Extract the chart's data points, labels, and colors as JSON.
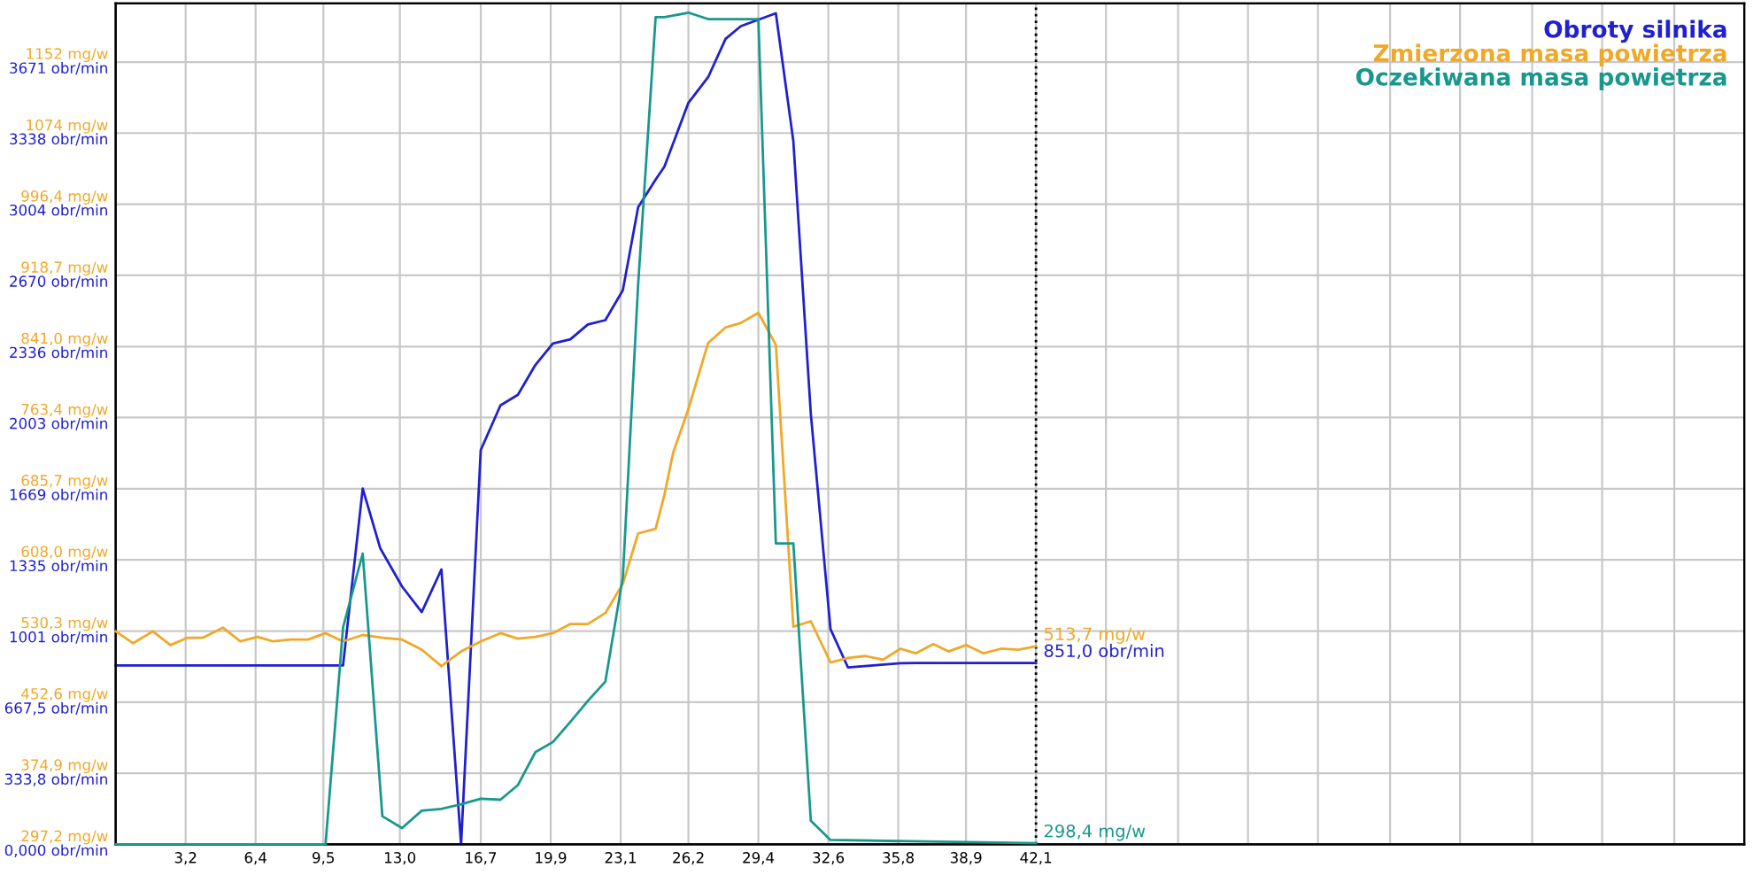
{
  "chart_data": {
    "type": "line",
    "xlim": [
      0,
      74.5
    ],
    "xticks": [
      {
        "value": 3.2,
        "label": "3,2"
      },
      {
        "value": 6.4,
        "label": "6,4"
      },
      {
        "value": 9.5,
        "label": "9,5"
      },
      {
        "value": 13.0,
        "label": "13,0"
      },
      {
        "value": 16.7,
        "label": "16,7"
      },
      {
        "value": 19.9,
        "label": "19,9"
      },
      {
        "value": 23.1,
        "label": "23,1"
      },
      {
        "value": 26.2,
        "label": "26,2"
      },
      {
        "value": 29.4,
        "label": "29,4"
      },
      {
        "value": 32.6,
        "label": "32,6"
      },
      {
        "value": 35.8,
        "label": "35,8"
      },
      {
        "value": 38.9,
        "label": "38,9"
      },
      {
        "value": 42.1,
        "label": "42,1"
      },
      {
        "value": 45.3,
        "label": null
      },
      {
        "value": 48.6,
        "label": null
      },
      {
        "value": 51.8,
        "label": null
      },
      {
        "value": 55.0,
        "label": null
      },
      {
        "value": 58.3,
        "label": null
      },
      {
        "value": 61.5,
        "label": null
      },
      {
        "value": 64.8,
        "label": null
      },
      {
        "value": 68.0,
        "label": null
      },
      {
        "value": 71.3,
        "label": null
      }
    ],
    "ylim": [
      0,
      3946
    ],
    "yticks": [
      {
        "value": 0,
        "label": "0,000 obr/min"
      },
      {
        "value": 333.8,
        "label": "333,8 obr/min"
      },
      {
        "value": 667.5,
        "label": "667,5 obr/min"
      },
      {
        "value": 1001,
        "label": "1001 obr/min"
      },
      {
        "value": 1335,
        "label": "1335 obr/min"
      },
      {
        "value": 1669,
        "label": "1669 obr/min"
      },
      {
        "value": 2003,
        "label": "2003 obr/min"
      },
      {
        "value": 2336,
        "label": "2336 obr/min"
      },
      {
        "value": 2670,
        "label": "2670 obr/min"
      },
      {
        "value": 3004,
        "label": "3004 obr/min"
      },
      {
        "value": 3338,
        "label": "3338 obr/min"
      },
      {
        "value": 3671,
        "label": "3671 obr/min"
      }
    ],
    "y2lim": [
      297.2,
      1216
    ],
    "y2ticks": [
      {
        "value": 297.2,
        "label": "297,2 mg/w"
      },
      {
        "value": 374.9,
        "label": "374,9 mg/w"
      },
      {
        "value": 452.6,
        "label": "452,6 mg/w"
      },
      {
        "value": 530.3,
        "label": "530,3 mg/w"
      },
      {
        "value": 608.0,
        "label": "608,0 mg/w"
      },
      {
        "value": 685.7,
        "label": "685,7 mg/w"
      },
      {
        "value": 763.4,
        "label": "763,4 mg/w"
      },
      {
        "value": 841.0,
        "label": "841,0 mg/w"
      },
      {
        "value": 918.7,
        "label": "918,7 mg/w"
      },
      {
        "value": 996.4,
        "label": "996,4 mg/w"
      },
      {
        "value": 1074,
        "label": "1074 mg/w"
      },
      {
        "value": 1152,
        "label": "1152 mg/w"
      }
    ],
    "grid": true,
    "legend": "top right",
    "marker": "none",
    "line_style": "solid",
    "ref_lines": [
      {
        "axis": "x",
        "value": 42.1,
        "color": "#000000",
        "line_style": "dotted"
      }
    ],
    "series": [
      {
        "name": "Obroty silnika",
        "color": "#2020d0",
        "axis": "y",
        "x": [
          0,
          10.4,
          11.3,
          12.1,
          13.1,
          14.0,
          14.9,
          15.8,
          16.7,
          17.6,
          18.4,
          19.2,
          20.0,
          20.8,
          21.6,
          22.4,
          23.2,
          23.9,
          24.7,
          25.1,
          26.2,
          27.1,
          27.9,
          28.6,
          29.4,
          30.2,
          31.0,
          31.8,
          32.7,
          33.5,
          35.9,
          36.6,
          42.1
        ],
        "values": [
          840,
          840,
          1670,
          1390,
          1210,
          1090,
          1290,
          0,
          1850,
          2060,
          2110,
          2250,
          2350,
          2370,
          2440,
          2460,
          2600,
          2990,
          3120,
          3180,
          3480,
          3600,
          3780,
          3840,
          3870,
          3900,
          3300,
          2020,
          1010,
          830,
          850,
          851,
          851
        ],
        "value_labels": [
          null,
          null,
          null,
          null,
          null,
          null,
          null,
          null,
          null,
          null,
          null,
          null,
          null,
          null,
          null,
          null,
          null,
          null,
          null,
          null,
          null,
          null,
          null,
          null,
          null,
          null,
          null,
          null,
          null,
          null,
          null,
          null,
          "851,0 obr/min"
        ]
      },
      {
        "name": "Zmierzona masa powietrza",
        "color": "#f0a828",
        "axis": "y2",
        "x": [
          0,
          0.8,
          1.7,
          2.5,
          3.3,
          4.0,
          4.9,
          5.7,
          6.5,
          7.2,
          8.0,
          8.8,
          9.6,
          10.4,
          11.3,
          12.2,
          13.1,
          14.0,
          14.9,
          15.8,
          16.7,
          17.6,
          18.4,
          19.2,
          20.0,
          20.8,
          21.6,
          22.4,
          23.2,
          23.9,
          24.7,
          25.1,
          25.5,
          26.2,
          27.1,
          27.9,
          28.6,
          29.4,
          30.2,
          31.0,
          31.8,
          32.7,
          33.5,
          34.3,
          35.1,
          35.9,
          36.6,
          37.4,
          38.1,
          38.9,
          39.7,
          40.5,
          41.3,
          42.1
        ],
        "values": [
          530,
          517,
          530,
          515,
          523,
          523,
          534,
          519,
          524,
          519,
          521,
          521,
          528,
          519,
          526,
          523,
          521,
          510,
          492,
          508,
          519,
          528,
          522,
          524,
          528,
          538,
          538,
          550,
          582,
          637,
          642,
          679,
          725,
          773,
          845,
          862,
          867,
          878,
          843,
          535,
          541,
          496,
          501,
          503,
          499,
          511,
          506,
          516,
          508,
          515,
          506,
          511,
          510,
          513.7
        ],
        "value_labels": [
          null,
          null,
          null,
          null,
          null,
          null,
          null,
          null,
          null,
          null,
          null,
          null,
          null,
          null,
          null,
          null,
          null,
          null,
          null,
          null,
          null,
          null,
          null,
          null,
          null,
          null,
          null,
          null,
          null,
          null,
          null,
          null,
          null,
          null,
          null,
          null,
          null,
          null,
          null,
          null,
          null,
          null,
          null,
          null,
          null,
          null,
          null,
          null,
          null,
          null,
          null,
          null,
          null,
          "513,7 mg/w"
        ]
      },
      {
        "name": "Oczekiwana masa powietrza",
        "color": "#18988c",
        "axis": "y2",
        "x": [
          0,
          9.6,
          10.4,
          11.3,
          12.2,
          13.1,
          14.0,
          14.9,
          15.8,
          16.7,
          17.6,
          18.4,
          19.2,
          20.0,
          20.8,
          21.6,
          22.4,
          23.2,
          23.9,
          24.7,
          25.1,
          26.2,
          27.1,
          29.4,
          30.2,
          31.0,
          31.8,
          32.7,
          42.1
        ],
        "values": [
          297.2,
          297.2,
          534,
          615,
          328,
          315,
          334,
          336,
          341,
          347,
          346,
          362,
          398,
          409,
          431,
          454,
          475,
          589,
          909,
          1201,
          1201,
          1206,
          1199,
          1199,
          626,
          626,
          323,
          302,
          298.4
        ],
        "value_labels": [
          null,
          null,
          null,
          null,
          null,
          null,
          null,
          null,
          null,
          null,
          null,
          null,
          null,
          null,
          null,
          null,
          null,
          null,
          null,
          null,
          null,
          null,
          null,
          null,
          null,
          null,
          null,
          null,
          "298,4 mg/w"
        ]
      }
    ]
  }
}
